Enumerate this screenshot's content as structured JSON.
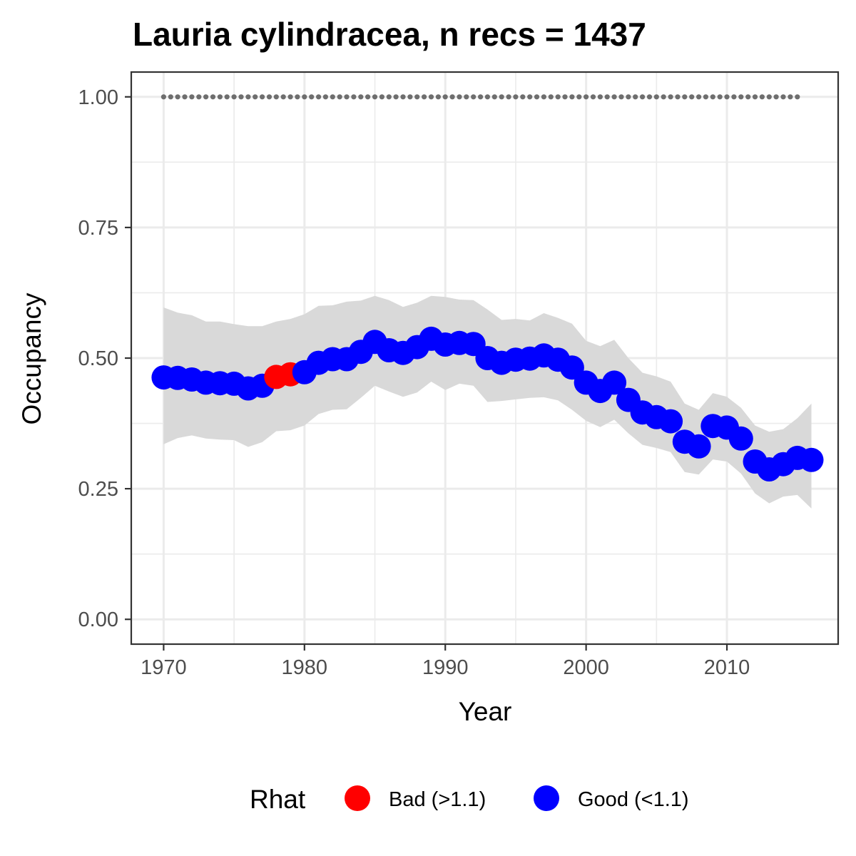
{
  "chart_data": {
    "type": "line",
    "title": "Lauria cylindracea, n recs = 1437",
    "xlabel": "Year",
    "ylabel": "Occupancy",
    "xlim": [
      1967.7,
      2017.9
    ],
    "ylim": [
      -0.0475,
      1.0475
    ],
    "x_ticks": [
      1970,
      1980,
      1990,
      2000,
      2010
    ],
    "x_tick_labels": [
      "1970",
      "1980",
      "1990",
      "2000",
      "2010"
    ],
    "y_ticks": [
      0,
      0.25,
      0.5,
      0.75,
      1.0
    ],
    "y_tick_labels": [
      "0.00",
      "0.25",
      "0.50",
      "0.75",
      "1.00"
    ],
    "grid": true,
    "legend": {
      "title": "Rhat",
      "position": "bottom",
      "entries": [
        {
          "label": "Bad (>1.1)",
          "color": "#ff0000"
        },
        {
          "label": "Good (<1.1)",
          "color": "#0000ff"
        }
      ]
    },
    "series": [
      {
        "type": "points",
        "x": [
          1970,
          1971,
          1972,
          1973,
          1974,
          1975,
          1976,
          1977,
          1978,
          1979,
          1980,
          1981,
          1982,
          1983,
          1984,
          1985,
          1986,
          1987,
          1988,
          1989,
          1990,
          1991,
          1992,
          1993,
          1994,
          1995,
          1996,
          1997,
          1998,
          1999,
          2000,
          2001,
          2002,
          2003,
          2004,
          2005,
          2006,
          2007,
          2008,
          2009,
          2010,
          2011,
          2012,
          2013,
          2014,
          2015,
          2016
        ],
        "y": [
          0.463,
          0.462,
          0.459,
          0.453,
          0.452,
          0.451,
          0.442,
          0.447,
          0.464,
          0.469,
          0.473,
          0.491,
          0.498,
          0.498,
          0.512,
          0.531,
          0.515,
          0.51,
          0.521,
          0.537,
          0.526,
          0.529,
          0.527,
          0.5,
          0.491,
          0.497,
          0.499,
          0.505,
          0.497,
          0.482,
          0.453,
          0.437,
          0.453,
          0.42,
          0.396,
          0.387,
          0.379,
          0.34,
          0.331,
          0.37,
          0.367,
          0.346,
          0.302,
          0.287,
          0.297,
          0.309,
          0.305
        ],
        "lower": [
          0.335,
          0.347,
          0.352,
          0.346,
          0.344,
          0.343,
          0.33,
          0.339,
          0.36,
          0.362,
          0.371,
          0.393,
          0.401,
          0.402,
          0.424,
          0.447,
          0.436,
          0.426,
          0.434,
          0.455,
          0.439,
          0.451,
          0.447,
          0.416,
          0.418,
          0.421,
          0.424,
          0.425,
          0.419,
          0.401,
          0.38,
          0.368,
          0.382,
          0.356,
          0.334,
          0.328,
          0.32,
          0.282,
          0.277,
          0.306,
          0.302,
          0.279,
          0.241,
          0.222,
          0.235,
          0.238,
          0.212
        ],
        "upper": [
          0.597,
          0.587,
          0.582,
          0.57,
          0.57,
          0.565,
          0.561,
          0.561,
          0.57,
          0.575,
          0.584,
          0.6,
          0.601,
          0.608,
          0.61,
          0.619,
          0.611,
          0.598,
          0.606,
          0.619,
          0.617,
          0.612,
          0.611,
          0.593,
          0.573,
          0.575,
          0.572,
          0.586,
          0.577,
          0.566,
          0.533,
          0.523,
          0.535,
          0.5,
          0.472,
          0.465,
          0.455,
          0.413,
          0.401,
          0.433,
          0.426,
          0.405,
          0.371,
          0.359,
          0.364,
          0.385,
          0.413
        ],
        "rhat": [
          "Good",
          "Good",
          "Good",
          "Good",
          "Good",
          "Good",
          "Good",
          "Good",
          "Bad",
          "Bad",
          "Good",
          "Good",
          "Good",
          "Good",
          "Good",
          "Good",
          "Good",
          "Good",
          "Good",
          "Good",
          "Good",
          "Good",
          "Good",
          "Good",
          "Good",
          "Good",
          "Good",
          "Good",
          "Good",
          "Good",
          "Good",
          "Good",
          "Good",
          "Good",
          "Good",
          "Good",
          "Good",
          "Good",
          "Good",
          "Good",
          "Good",
          "Good",
          "Good",
          "Good",
          "Good",
          "Good",
          "Good"
        ]
      },
      {
        "type": "reference",
        "style": "dotted",
        "x_start": 1970,
        "x_end": 2015,
        "y": 1.0,
        "color": "#6e6e6e"
      }
    ],
    "colors": {
      "good": "#0000ff",
      "bad": "#ff0000",
      "ribbon": "#d9d9d9",
      "grid": "#ebebeb",
      "panel_border": "#333333"
    }
  }
}
